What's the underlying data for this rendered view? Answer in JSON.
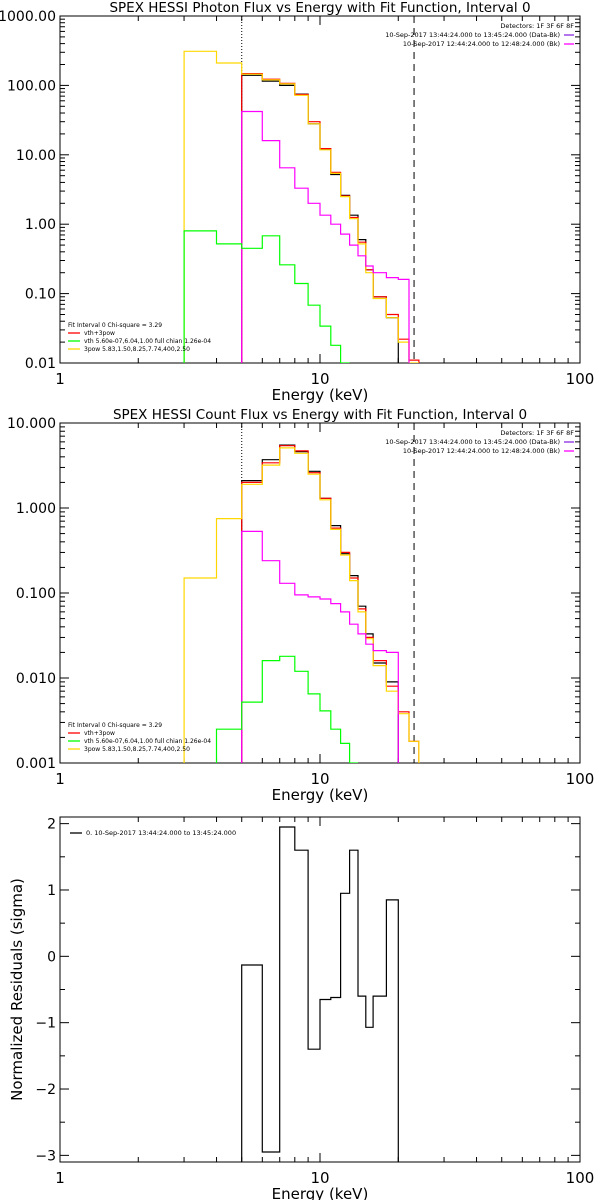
{
  "colors": {
    "black": "#000000",
    "red": "#ff0000",
    "magenta": "#ff00ff",
    "green": "#00ff00",
    "yellow": "#ffd700",
    "purple": "#8a2be2"
  },
  "chart_data": [
    {
      "type": "line",
      "title": "SPEX HESSI Photon Flux vs Energy with Fit Function, Interval 0",
      "xlabel": "Energy  (keV)",
      "ylabel": "",
      "xscale": "log",
      "yscale": "log",
      "xlim": [
        1,
        100
      ],
      "ylim": [
        0.01,
        1000
      ],
      "xticks": [
        1,
        10,
        100
      ],
      "xtick_labels": [
        "1",
        "10",
        "100"
      ],
      "yticks": [
        0.01,
        0.1,
        1,
        10,
        100,
        1000
      ],
      "ytick_labels": [
        "0.01",
        "0.10",
        "1.00",
        "10.00",
        "100.00",
        "1000.00"
      ],
      "vlines": [
        {
          "x": 5.0,
          "style": "dotted"
        },
        {
          "x": 23.0,
          "style": "dashed"
        }
      ],
      "legend_topright": [
        {
          "text": "Detectors: 1F 3F 6F 8F",
          "color": "#000000"
        },
        {
          "text": "10-Sep-2017 13:44:24.000 to 13:45:24.000 (Data-Bk)",
          "color": "#8a2be2"
        },
        {
          "text": "10-Sep-2017 12:44:24.000 to 12:48:24.000 (Bk)",
          "color": "#ff00ff"
        }
      ],
      "legend_bottomleft": [
        {
          "text": "Fit Interval 0   Chi-square = 3.29",
          "color": "#000000"
        },
        {
          "text": "vth+3pow",
          "color": "#ff0000"
        },
        {
          "text": "vth 5.60e-07,6.04,1.00   full chian 1.26e-04",
          "color": "#00ff00"
        },
        {
          "text": "3pow  5.83,1.50,8.25,7.74,400,2.50",
          "color": "#ffd700"
        }
      ],
      "edges": [
        3.0,
        4.0,
        5.0,
        6.0,
        7.0,
        8.0,
        9.0,
        10.0,
        11.0,
        12.0,
        13.0,
        14.0,
        15.0,
        16.0,
        18.0,
        20.0,
        22.0,
        24.0,
        26.0,
        28.0
      ],
      "series": [
        {
          "name": "Data-Bk",
          "color": "#000000",
          "start": 2,
          "values": [
            140,
            115,
            100,
            75,
            28,
            12,
            5.2,
            2.6,
            1.35,
            0.6,
            0.22,
            0.09,
            0.045
          ]
        },
        {
          "name": "vth+3pow",
          "color": "#ff0000",
          "start": 2,
          "values": [
            148,
            123,
            107,
            74,
            30,
            12.3,
            5.6,
            2.55,
            1.25,
            0.55,
            0.22,
            0.09,
            0.05,
            0.022,
            0.011
          ]
        },
        {
          "name": "3pow",
          "color": "#ffd700",
          "start": 0,
          "values": [
            310,
            210,
            145,
            120,
            105,
            72,
            28,
            11.8,
            5.4,
            2.5,
            1.2,
            0.52,
            0.2,
            0.085,
            0.045,
            0.02,
            0.01
          ]
        },
        {
          "name": "Bk",
          "color": "#ff00ff",
          "start": 2,
          "values": [
            42,
            16,
            6.5,
            3.3,
            2.0,
            1.35,
            1.0,
            0.72,
            0.5,
            0.35,
            0.25,
            0.2,
            0.17,
            0.16
          ]
        },
        {
          "name": "vth",
          "color": "#00ff00",
          "start": 0,
          "values": [
            0.8,
            0.52,
            0.45,
            0.68,
            0.26,
            0.14,
            0.068,
            0.034,
            0.018,
            0.01
          ]
        }
      ]
    },
    {
      "type": "line",
      "title": "SPEX HESSI Count Flux vs Energy with Fit Function, Interval 0",
      "xlabel": "Energy  (keV)",
      "ylabel": "",
      "xscale": "log",
      "yscale": "log",
      "xlim": [
        1,
        100
      ],
      "ylim": [
        0.001,
        10
      ],
      "xticks": [
        1,
        10,
        100
      ],
      "xtick_labels": [
        "1",
        "10",
        "100"
      ],
      "yticks": [
        0.001,
        0.01,
        0.1,
        1,
        10
      ],
      "ytick_labels": [
        "0.001",
        "0.010",
        "0.100",
        "1.000",
        "10.000"
      ],
      "vlines": [
        {
          "x": 5.0,
          "style": "dotted"
        },
        {
          "x": 23.0,
          "style": "dashed"
        }
      ],
      "legend_topright": [
        {
          "text": "Detectors: 1F 3F 6F 8F",
          "color": "#000000"
        },
        {
          "text": "10-Sep-2017 13:44:24.000 to 13:45:24.000 (Data-Bk)",
          "color": "#8a2be2"
        },
        {
          "text": "10-Sep-2017 12:44:24.000 to 12:48:24.000 (Bk)",
          "color": "#ff00ff"
        }
      ],
      "legend_bottomleft": [
        {
          "text": "Fit Interval 0   Chi-square = 3.29",
          "color": "#000000"
        },
        {
          "text": "vth+3pow",
          "color": "#ff0000"
        },
        {
          "text": "vth 5.60e-07,6.04,1.00   full chian 1.26e-04",
          "color": "#00ff00"
        },
        {
          "text": "3pow  5.83,1.50,8.25,7.74,400,2.50",
          "color": "#ffd700"
        }
      ],
      "edges": [
        3.0,
        4.0,
        5.0,
        6.0,
        7.0,
        8.0,
        9.0,
        10.0,
        11.0,
        12.0,
        13.0,
        14.0,
        15.0,
        16.0,
        18.0,
        20.0,
        22.0,
        24.0,
        26.0,
        28.0
      ],
      "series": [
        {
          "name": "Data-Bk",
          "color": "#000000",
          "start": 2,
          "values": [
            2.1,
            3.7,
            5.5,
            4.6,
            2.7,
            1.3,
            0.62,
            0.29,
            0.16,
            0.07,
            0.033,
            0.015,
            0.009
          ]
        },
        {
          "name": "vth+3pow",
          "color": "#ff0000",
          "start": 2,
          "values": [
            2.0,
            3.4,
            5.4,
            4.7,
            2.6,
            1.3,
            0.58,
            0.3,
            0.15,
            0.065,
            0.03,
            0.016,
            0.008,
            0.004,
            0.0018
          ]
        },
        {
          "name": "3pow",
          "color": "#ffd700",
          "start": 0,
          "values": [
            0.15,
            0.75,
            1.9,
            3.2,
            5.1,
            4.4,
            2.5,
            1.25,
            0.56,
            0.28,
            0.14,
            0.06,
            0.029,
            0.014,
            0.007,
            0.0038,
            0.0018
          ]
        },
        {
          "name": "Bk",
          "color": "#ff00ff",
          "start": 2,
          "values": [
            0.53,
            0.24,
            0.13,
            0.095,
            0.09,
            0.085,
            0.075,
            0.06,
            0.043,
            0.033,
            0.025,
            0.021,
            0.02
          ]
        },
        {
          "name": "vth",
          "color": "#00ff00",
          "start": 1,
          "values": [
            0.0025,
            0.0052,
            0.016,
            0.018,
            0.012,
            0.0065,
            0.0041,
            0.0025,
            0.0017,
            0.001
          ]
        }
      ]
    },
    {
      "type": "line",
      "title": "",
      "xlabel": "Energy  (keV)",
      "ylabel": "Normalized Residuals  (sigma)",
      "xscale": "log",
      "yscale": "linear",
      "xlim": [
        1,
        100
      ],
      "ylim": [
        -3.1,
        2.1
      ],
      "xticks": [
        1,
        10,
        100
      ],
      "xtick_labels": [
        "1",
        "10",
        "100"
      ],
      "yticks": [
        -3,
        -2,
        -1,
        0,
        1,
        2
      ],
      "ytick_labels": [
        "−3",
        "−2",
        "−1",
        "0",
        "1",
        "2"
      ],
      "legend_topleft": [
        {
          "text": "0. 10-Sep-2017 13:44:24.000 to 13:45:24.000",
          "color": "#000000"
        }
      ],
      "edges": [
        5.0,
        6.0,
        7.0,
        8.0,
        9.0,
        10.0,
        11.0,
        12.0,
        13.0,
        14.0,
        15.0,
        16.0,
        18.0,
        20.0,
        22.0
      ],
      "series": [
        {
          "name": "0. 10-Sep-2017 13:44:24.000 to 13:45:24.000",
          "color": "#000000",
          "start": 0,
          "values": [
            -0.13,
            -2.95,
            1.95,
            1.6,
            -1.4,
            -0.65,
            -0.62,
            0.95,
            1.6,
            -0.6,
            -1.07,
            -0.6,
            0.85
          ]
        }
      ]
    }
  ]
}
